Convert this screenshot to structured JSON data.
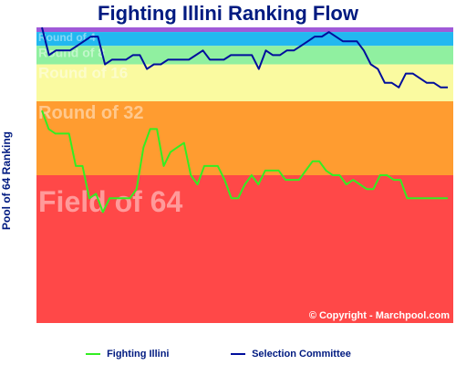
{
  "chart_data": {
    "type": "line",
    "title": "Fighting Illini Ranking Flow",
    "ylabel": "Pool of 64 Ranking",
    "credit": "© Copyright - Marchpool.com",
    "y_reversed": true,
    "ylim": [
      0,
      64
    ],
    "grid": false,
    "legend_position": "bottom",
    "bands": [
      {
        "label": "",
        "from": 0,
        "to": 1,
        "color": "#a05ad8"
      },
      {
        "label": "Round of 4",
        "from": 1,
        "to": 4,
        "color": "#22b8f0"
      },
      {
        "label": "Round of 8",
        "from": 4,
        "to": 8,
        "color": "#90f0a0"
      },
      {
        "label": "Round of 16",
        "from": 8,
        "to": 16,
        "color": "#fafaa0"
      },
      {
        "label": "Round of 32",
        "from": 16,
        "to": 32,
        "color": "#ff9c30"
      },
      {
        "label": "Field of 64",
        "from": 32,
        "to": 64,
        "color": "#ff4848"
      }
    ],
    "series": [
      {
        "name": "Fighting Illini",
        "color": "#33ee22",
        "values": [
          18,
          22,
          23,
          23,
          23,
          30,
          30,
          37,
          36,
          40,
          37,
          37,
          37,
          37,
          35,
          26,
          22,
          22,
          30,
          27,
          26,
          25,
          32,
          34,
          30,
          30,
          30,
          33,
          37,
          37,
          34,
          32,
          34,
          31,
          31,
          31,
          33,
          33,
          33,
          31,
          29,
          29,
          31,
          32,
          32,
          34,
          33,
          34,
          35,
          35,
          32,
          32,
          33,
          33,
          37,
          37,
          37,
          37,
          37,
          37,
          37
        ]
      },
      {
        "name": "Selection Committee",
        "color": "#000e9c",
        "values": [
          0,
          6,
          5,
          5,
          5,
          4,
          3,
          2,
          2,
          8,
          7,
          7,
          7,
          6,
          6,
          9,
          8,
          8,
          7,
          7,
          7,
          7,
          6,
          5,
          7,
          7,
          7,
          6,
          6,
          6,
          6,
          9,
          5,
          6,
          6,
          5,
          5,
          4,
          3,
          2,
          2,
          1,
          2,
          3,
          3,
          3,
          5,
          8,
          9,
          12,
          12,
          13,
          10,
          10,
          11,
          12,
          12,
          13,
          13
        ]
      }
    ]
  }
}
